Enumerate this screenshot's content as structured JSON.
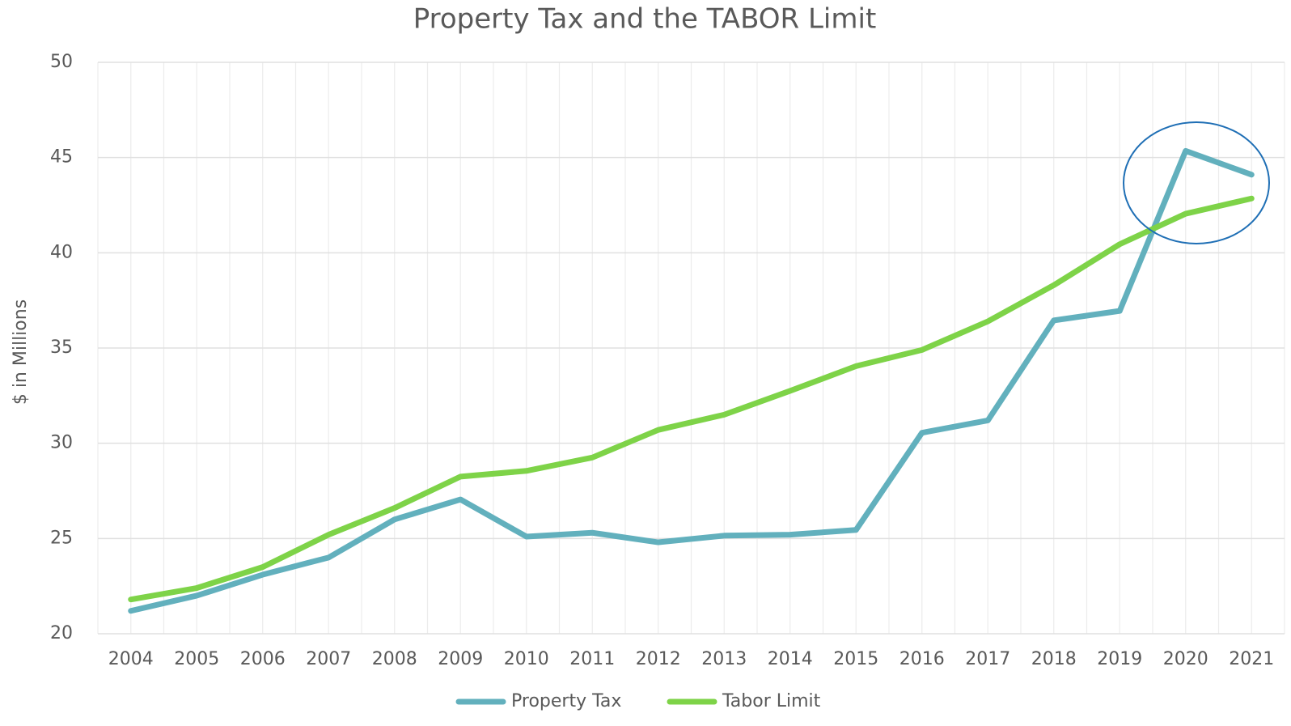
{
  "chart_data": {
    "type": "line",
    "title": "Property Tax and the TABOR Limit",
    "y_label": "$ in Millions",
    "categories": [
      "2004",
      "2005",
      "2006",
      "2007",
      "2008",
      "2009",
      "2010",
      "2011",
      "2012",
      "2013",
      "2014",
      "2015",
      "2016",
      "2017",
      "2018",
      "2019",
      "2020",
      "2021"
    ],
    "series": [
      {
        "name": "Property Tax",
        "color": "#62b0bd",
        "values": [
          21.2,
          22.0,
          23.1,
          24.0,
          26.0,
          27.05,
          25.1,
          25.3,
          24.8,
          25.15,
          25.2,
          25.45,
          30.55,
          31.2,
          36.45,
          36.95,
          45.35,
          44.1
        ]
      },
      {
        "name": "Tabor Limit",
        "color": "#7ed348",
        "values": [
          21.8,
          22.4,
          23.5,
          25.2,
          26.6,
          28.25,
          28.55,
          29.25,
          30.7,
          31.5,
          32.75,
          34.05,
          34.9,
          36.4,
          38.3,
          40.45,
          42.05,
          42.85
        ]
      }
    ],
    "ylim": [
      20,
      50
    ],
    "yticks": [
      20,
      25,
      30,
      35,
      40,
      45,
      50
    ],
    "grid": true,
    "legend": "bottom"
  }
}
